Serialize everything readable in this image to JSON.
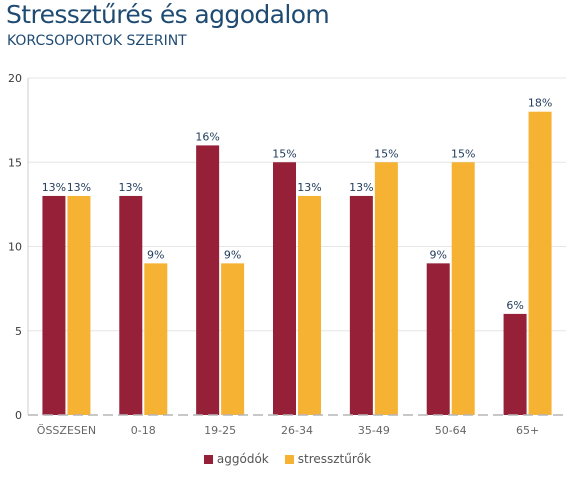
{
  "title": "Stressztűrés és aggodalom",
  "subtitle": "KORCSOPORTOK SZERINT",
  "chart_data": {
    "type": "bar",
    "categories": [
      "ÖSSZESEN",
      "0-18",
      "19-25",
      "26-34",
      "35-49",
      "50-64",
      "65+"
    ],
    "series": [
      {
        "name": "aggódók",
        "values": [
          13,
          13,
          16,
          15,
          13,
          9,
          6
        ],
        "labels": [
          "13%",
          "13%",
          "16%",
          "15%",
          "13%",
          "9%",
          "6%"
        ],
        "color": "#962038"
      },
      {
        "name": "stressztűrők",
        "values": [
          13,
          9,
          9,
          13,
          15,
          15,
          18
        ],
        "labels": [
          "13%",
          "9%",
          "9%",
          "13%",
          "15%",
          "15%",
          "18%"
        ],
        "color": "#f6b233"
      }
    ],
    "ylim": [
      0,
      20
    ],
    "yticks": [
      0,
      5,
      10,
      15,
      20
    ],
    "grid": true,
    "legend": "bottom-center"
  }
}
